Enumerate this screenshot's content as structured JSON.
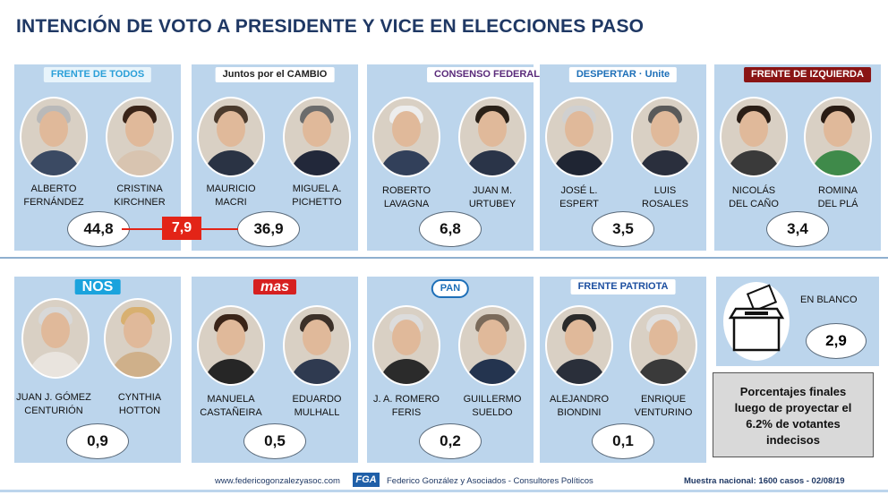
{
  "title": "INTENCIÓN DE VOTO A PRESIDENTE Y VICE EN ELECCIONES PASO",
  "colors": {
    "title": "#1f3864",
    "card": "#bcd5ec",
    "diff": "#e32417"
  },
  "chart_data": {
    "type": "table",
    "title": "INTENCIÓN DE VOTO A PRESIDENTE Y VICE EN ELECCIONES PASO",
    "rows": [
      {
        "party": "FRENTE DE TODOS",
        "candidates": [
          "ALBERTO FERNÁNDEZ",
          "CRISTINA KIRCHNER"
        ],
        "value": "44,8"
      },
      {
        "party": "Juntos por el CAMBIO",
        "candidates": [
          "MAURICIO MACRI",
          "MIGUEL A. PICHETTO"
        ],
        "value": "36,9"
      },
      {
        "party": "CONSENSO FEDERAL",
        "candidates": [
          "ROBERTO LAVAGNA",
          "JUAN M. URTUBEY"
        ],
        "value": "6,8"
      },
      {
        "party": "DESPERTAR · Unite",
        "candidates": [
          "JOSÉ L. ESPERT",
          "LUIS ROSALES"
        ],
        "value": "3,5"
      },
      {
        "party": "FRENTE DE IZQUIERDA",
        "candidates": [
          "NICOLÁS DEL CAÑO",
          "ROMINA DEL PLÁ"
        ],
        "value": "3,4"
      },
      {
        "party": "NOS",
        "candidates": [
          "JUAN J. GÓMEZ CENTURIÓN",
          "CYNTHIA HOTTON"
        ],
        "value": "0,9"
      },
      {
        "party": "mas",
        "candidates": [
          "MANUELA CASTAÑEIRA",
          "EDUARDO MULHALL"
        ],
        "value": "0,5"
      },
      {
        "party": "PAN",
        "candidates": [
          "J. A. ROMERO FERIS",
          "GUILLERMO SUELDO"
        ],
        "value": "0,2"
      },
      {
        "party": "FRENTE PATRIOTA",
        "candidates": [
          "ALEJANDRO BIONDINI",
          "ENRIQUE VENTURINO"
        ],
        "value": "0,1"
      }
    ],
    "blank": {
      "label": "EN BLANCO",
      "value": "2,9"
    },
    "difference": "7,9"
  },
  "cards": [
    {
      "logo": "FRENTE DE TODOS",
      "logo_bg": "#e8f4fb",
      "logo_fg": "#2a9fd8",
      "left": {
        "name1": "ALBERTO",
        "name2": "FERNÁNDEZ",
        "hair": "#b9b9b9",
        "suit": "#3b4a63"
      },
      "right": {
        "name1": "CRISTINA",
        "name2": "KIRCHNER",
        "hair": "#3a2418",
        "suit": "#d8c4b0"
      },
      "value": "44,8"
    },
    {
      "logo": "Juntos por el CAMBIO",
      "logo_bg": "#ffffff",
      "logo_fg": "#222",
      "left": {
        "name1": "MAURICIO",
        "name2": "MACRI",
        "hair": "#4a3a2c",
        "suit": "#2a3344"
      },
      "right": {
        "name1": "MIGUEL A.",
        "name2": "PICHETTO",
        "hair": "#6c6c6c",
        "suit": "#22283a"
      },
      "value": "36,9"
    },
    {
      "logo": "CONSENSO FEDERAL",
      "logo_bg": "#ffffff",
      "logo_fg": "#5a2a7a",
      "left": {
        "name1": "ROBERTO",
        "name2": "LAVAGNA",
        "hair": "#ededed",
        "suit": "#32405a"
      },
      "right": {
        "name1": "JUAN M.",
        "name2": "URTUBEY",
        "hair": "#2a2118",
        "suit": "#2a3448"
      },
      "value": "6,8"
    },
    {
      "logo": "DESPERTAR · Unite",
      "logo_bg": "#ffffff",
      "logo_fg": "#1d6fb8",
      "left": {
        "name1": "JOSÉ L.",
        "name2": "ESPERT",
        "hair": "#d0d0d0",
        "suit": "#1f2533"
      },
      "right": {
        "name1": "LUIS",
        "name2": "ROSALES",
        "hair": "#5a5a5a",
        "suit": "#2a2f3d"
      },
      "value": "3,5"
    },
    {
      "logo": "FRENTE DE IZQUIERDA",
      "logo_bg": "#8a1414",
      "logo_fg": "#ffffff",
      "left": {
        "name1": "NICOLÁS",
        "name2": "DEL CAÑO",
        "hair": "#2a1e16",
        "suit": "#3a3a3a"
      },
      "right": {
        "name1": "ROMINA",
        "name2": "DEL PLÁ",
        "hair": "#2a1c14",
        "suit": "#3f8a4a"
      },
      "value": "3,4"
    },
    {
      "logo": "NOS",
      "logo_bg": "#1aa3dd",
      "logo_fg": "#ffffff",
      "left": {
        "name1": "JUAN J. GÓMEZ",
        "name2": "CENTURIÓN",
        "hair": "#d8d8d8",
        "suit": "#e9e4de"
      },
      "right": {
        "name1": "CYNTHIA",
        "name2": "HOTTON",
        "hair": "#d8b070",
        "suit": "#cfb08a"
      },
      "value": "0,9"
    },
    {
      "logo": "mas",
      "logo_bg": "#d62020",
      "logo_fg": "#ffffff",
      "left": {
        "name1": "MANUELA",
        "name2": "CASTAÑEIRA",
        "hair": "#3a2418",
        "suit": "#262626"
      },
      "right": {
        "name1": "EDUARDO",
        "name2": "MULHALL",
        "hair": "#3c3028",
        "suit": "#2f3a50"
      },
      "value": "0,5"
    },
    {
      "logo": "PAN",
      "logo_bg": "#ffffff",
      "logo_fg": "#1d6fb8",
      "left": {
        "name1": "J. A. ROMERO",
        "name2": "FERIS",
        "hair": "#dcdcdc",
        "suit": "#2b2b2b"
      },
      "right": {
        "name1": "GUILLERMO",
        "name2": "SUELDO",
        "hair": "#7a6a5a",
        "suit": "#24344f"
      },
      "value": "0,2"
    },
    {
      "logo": "FRENTE PATRIOTA",
      "logo_bg": "#ffffff",
      "logo_fg": "#1d4fa0",
      "left": {
        "name1": "ALEJANDRO",
        "name2": "BIONDINI",
        "hair": "#2a2a2a",
        "suit": "#2a2f3a"
      },
      "right": {
        "name1": "ENRIQUE",
        "name2": "VENTURINO",
        "hair": "#e0e0e0",
        "suit": "#3a3a3a"
      },
      "value": "0,1"
    }
  ],
  "blanco": {
    "label": "EN BLANCO",
    "value": "2,9"
  },
  "difference": "7,9",
  "note": {
    "line1": "Porcentajes finales",
    "line2": "luego de proyectar el",
    "line3": "6.2%  de votantes",
    "line4": "indecisos"
  },
  "footer": {
    "website": "www.federicogonzalezyasoc.com",
    "brand": "FGA",
    "company": "Federico González y Asociados - Consultores Políticos",
    "sample": "Muestra nacional: 1600 casos - 02/08/19"
  }
}
